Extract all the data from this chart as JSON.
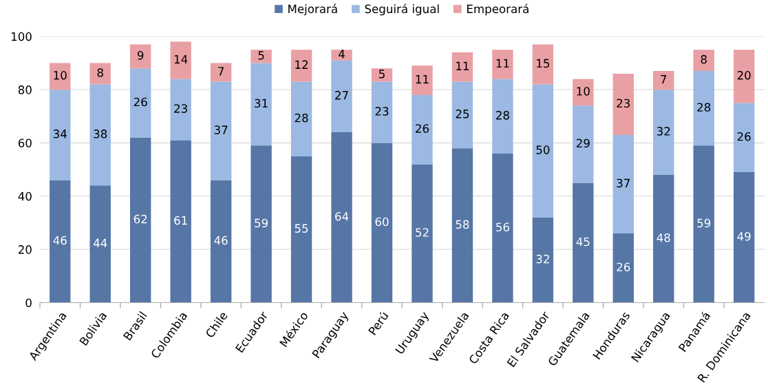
{
  "chart_data": {
    "type": "bar",
    "stacked": true,
    "categories": [
      "Argentina",
      "Bolivia",
      "Brasil",
      "Colombia",
      "Chile",
      "Ecuador",
      "México",
      "Paraguay",
      "Perú",
      "Uruguay",
      "Venezuela",
      "Costa Rica",
      "El Salvador",
      "Guatemala",
      "Honduras",
      "Nicaragua",
      "Panamá",
      "R. Dominicana"
    ],
    "series": [
      {
        "name": "Mejorará",
        "color": "#5676a6",
        "values": [
          46,
          44,
          62,
          61,
          46,
          59,
          55,
          64,
          60,
          52,
          58,
          56,
          32,
          45,
          26,
          48,
          59,
          49
        ]
      },
      {
        "name": "Seguirá igual",
        "color": "#9bb9e2",
        "values": [
          34,
          38,
          26,
          23,
          37,
          31,
          28,
          27,
          23,
          26,
          25,
          28,
          50,
          29,
          37,
          32,
          28,
          26
        ]
      },
      {
        "name": "Empeorará",
        "color": "#e9a0a4",
        "values": [
          10,
          8,
          9,
          14,
          7,
          5,
          12,
          4,
          5,
          11,
          11,
          11,
          15,
          10,
          23,
          7,
          8,
          20
        ]
      }
    ],
    "ylim": [
      0,
      100
    ],
    "yticks": [
      0,
      20,
      40,
      60,
      80,
      100
    ],
    "grid": "y",
    "legend": "top",
    "data_labels": true
  }
}
